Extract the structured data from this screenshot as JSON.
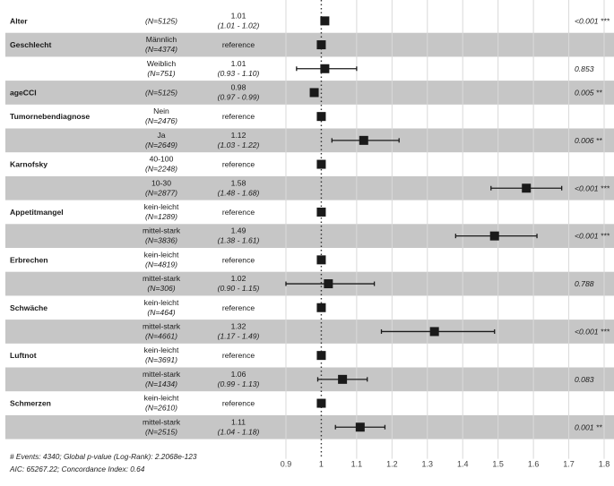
{
  "chart_data": {
    "type": "forest",
    "xlim": [
      0.9,
      1.8
    ],
    "ticks": [
      "0.9",
      "1",
      "1.1",
      "1.2",
      "1.3",
      "1.4",
      "1.5",
      "1.6",
      "1.7",
      "1.8"
    ],
    "reference_line": 1,
    "rows": [
      {
        "var": "Alter",
        "level": "",
        "n": "(N=5125)",
        "est": "1.01",
        "ci": "(1.01 - 1.02)",
        "hr": 1.01,
        "lo": 1.01,
        "hi": 1.02,
        "p": "<0.001 ***",
        "shaded": false
      },
      {
        "var": "Geschlecht",
        "level": "Männlich",
        "n": "(N=4374)",
        "est": "reference",
        "ci": "",
        "hr": 1.0,
        "lo": null,
        "hi": null,
        "p": "",
        "shaded": true
      },
      {
        "var": "",
        "level": "Weiblich",
        "n": "(N=751)",
        "est": "1.01",
        "ci": "(0.93 - 1.10)",
        "hr": 1.01,
        "lo": 0.93,
        "hi": 1.1,
        "p": "0.853",
        "shaded": false
      },
      {
        "var": "ageCCI",
        "level": "",
        "n": "(N=5125)",
        "est": "0.98",
        "ci": "(0.97 - 0.99)",
        "hr": 0.98,
        "lo": 0.97,
        "hi": 0.99,
        "p": "0.005 **",
        "shaded": true
      },
      {
        "var": "Tumornebendiagnose",
        "level": "Nein",
        "n": "(N=2476)",
        "est": "reference",
        "ci": "",
        "hr": 1.0,
        "lo": null,
        "hi": null,
        "p": "",
        "shaded": false
      },
      {
        "var": "",
        "level": "Ja",
        "n": "(N=2649)",
        "est": "1.12",
        "ci": "(1.03 - 1.22)",
        "hr": 1.12,
        "lo": 1.03,
        "hi": 1.22,
        "p": "0.006 **",
        "shaded": true
      },
      {
        "var": "Karnofsky",
        "level": "40-100",
        "n": "(N=2248)",
        "est": "reference",
        "ci": "",
        "hr": 1.0,
        "lo": null,
        "hi": null,
        "p": "",
        "shaded": false
      },
      {
        "var": "",
        "level": "10-30",
        "n": "(N=2877)",
        "est": "1.58",
        "ci": "(1.48 - 1.68)",
        "hr": 1.58,
        "lo": 1.48,
        "hi": 1.68,
        "p": "<0.001 ***",
        "shaded": true
      },
      {
        "var": "Appetitmangel",
        "level": "kein-leicht",
        "n": "(N=1289)",
        "est": "reference",
        "ci": "",
        "hr": 1.0,
        "lo": null,
        "hi": null,
        "p": "",
        "shaded": false
      },
      {
        "var": "",
        "level": "mittel-stark",
        "n": "(N=3836)",
        "est": "1.49",
        "ci": "(1.38 - 1.61)",
        "hr": 1.49,
        "lo": 1.38,
        "hi": 1.61,
        "p": "<0.001 ***",
        "shaded": true
      },
      {
        "var": "Erbrechen",
        "level": "kein-leicht",
        "n": "(N=4819)",
        "est": "reference",
        "ci": "",
        "hr": 1.0,
        "lo": null,
        "hi": null,
        "p": "",
        "shaded": false
      },
      {
        "var": "",
        "level": "mittel-stark",
        "n": "(N=306)",
        "est": "1.02",
        "ci": "(0.90 - 1.15)",
        "hr": 1.02,
        "lo": 0.9,
        "hi": 1.15,
        "p": "0.788",
        "shaded": true
      },
      {
        "var": "Schwäche",
        "level": "kein-leicht",
        "n": "(N=464)",
        "est": "reference",
        "ci": "",
        "hr": 1.0,
        "lo": null,
        "hi": null,
        "p": "",
        "shaded": false
      },
      {
        "var": "",
        "level": "mittel-stark",
        "n": "(N=4661)",
        "est": "1.32",
        "ci": "(1.17 - 1.49)",
        "hr": 1.32,
        "lo": 1.17,
        "hi": 1.49,
        "p": "<0.001 ***",
        "shaded": true
      },
      {
        "var": "Luftnot",
        "level": "kein-leicht",
        "n": "(N=3691)",
        "est": "reference",
        "ci": "",
        "hr": 1.0,
        "lo": null,
        "hi": null,
        "p": "",
        "shaded": false
      },
      {
        "var": "",
        "level": "mittel-stark",
        "n": "(N=1434)",
        "est": "1.06",
        "ci": "(0.99 - 1.13)",
        "hr": 1.06,
        "lo": 0.99,
        "hi": 1.13,
        "p": "0.083",
        "shaded": true
      },
      {
        "var": "Schmerzen",
        "level": "kein-leicht",
        "n": "(N=2610)",
        "est": "reference",
        "ci": "",
        "hr": 1.0,
        "lo": null,
        "hi": null,
        "p": "",
        "shaded": false
      },
      {
        "var": "",
        "level": "mittel-stark",
        "n": "(N=2515)",
        "est": "1.11",
        "ci": "(1.04 - 1.18)",
        "hr": 1.11,
        "lo": 1.04,
        "hi": 1.18,
        "p": "0.001 **",
        "shaded": true
      }
    ],
    "footer": [
      "# Events: 4340; Global p-value (Log-Rank): 2.2068e-123",
      "AIC: 65267.22; Concordance Index: 0.64"
    ],
    "colors": {
      "shade": "#c6c6c6",
      "grid": "#d9d9d9",
      "marker": "#1a1a1a",
      "text": "#1a1a1a"
    }
  }
}
